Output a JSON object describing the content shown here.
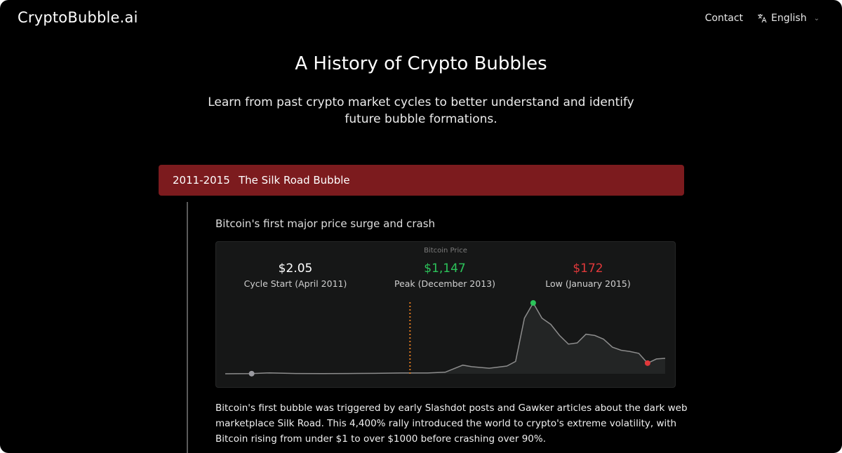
{
  "header": {
    "logo": "CryptoBubble.ai",
    "contact": "Contact",
    "language": "English"
  },
  "hero": {
    "title": "A History of Crypto Bubbles",
    "subtitle": "Learn from past crypto market cycles to better understand and identify future bubble formations."
  },
  "bubble": {
    "period": "2011-2015",
    "name": "The Silk Road Bubble",
    "summary": "Bitcoin's first major price surge and crash",
    "chart_title": "Bitcoin Price",
    "stats": {
      "start": {
        "value": "$2.05",
        "caption": "Cycle Start (April 2011)"
      },
      "peak": {
        "value": "$1,147",
        "caption": "Peak (December 2013)"
      },
      "low": {
        "value": "$172",
        "caption": "Low (January 2015)"
      }
    },
    "story": "Bitcoin's first bubble was triggered by early Slashdot posts and Gawker articles about the dark web marketplace Silk Road. This 4,400% rally introduced the world to crypto's extreme volatility, with Bitcoin rising from under $1 to over $1000 before crashing over 90%."
  },
  "colors": {
    "header_bar": "#7c1b1e",
    "peak": "#2cc35a",
    "low": "#e0383a",
    "marker_line": "#e07a1f",
    "price_line": "#8c8c8c"
  },
  "chart_data": {
    "type": "area",
    "title": "Bitcoin Price",
    "x": [
      "2011-01",
      "2011-04",
      "2011-06",
      "2011-09",
      "2011-12",
      "2012-03",
      "2012-06",
      "2012-09",
      "2012-12",
      "2013-02",
      "2013-04",
      "2013-05",
      "2013-07",
      "2013-09",
      "2013-10",
      "2013-11",
      "2013-12",
      "2014-01",
      "2014-02",
      "2014-03",
      "2014-04",
      "2014-05",
      "2014-06",
      "2014-07",
      "2014-08",
      "2014-09",
      "2014-10",
      "2014-11",
      "2014-12",
      "2015-01",
      "2015-02",
      "2015-03"
    ],
    "values": [
      0.5,
      2.05,
      15,
      5,
      3,
      5,
      6.5,
      12,
      13,
      25,
      140,
      115,
      90,
      125,
      200,
      900,
      1147,
      900,
      800,
      620,
      480,
      500,
      640,
      620,
      560,
      430,
      380,
      360,
      330,
      172,
      240,
      250
    ],
    "annotations": [
      {
        "label": "Cycle Start (April 2011)",
        "x": "2011-04",
        "y": 2.05
      },
      {
        "label": "Peak (December 2013)",
        "x": "2013-12",
        "y": 1147
      },
      {
        "label": "Low (January 2015)",
        "x": "2015-01",
        "y": 172
      }
    ],
    "vertical_marker_x": "2012-10",
    "grid": false,
    "legend": "none"
  }
}
